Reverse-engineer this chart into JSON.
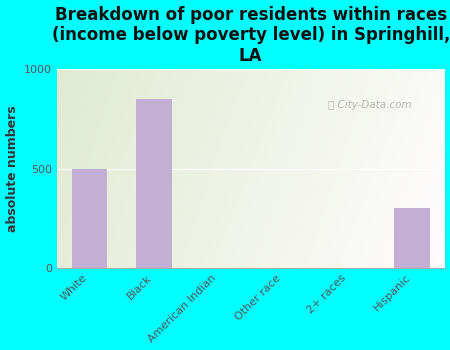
{
  "title": "Breakdown of poor residents within races\n(income below poverty level) in Springhill,\nLA",
  "ylabel": "absolute numbers",
  "categories": [
    "White",
    "Black",
    "American Indian",
    "Other race",
    "2+ races",
    "Hispanic"
  ],
  "values": [
    500,
    850,
    0,
    0,
    0,
    300
  ],
  "bar_color": "#c4afd4",
  "ylim": [
    0,
    1000
  ],
  "yticks": [
    0,
    500,
    1000
  ],
  "background_color": "#00ffff",
  "title_fontsize": 12,
  "ylabel_fontsize": 9,
  "tick_fontsize": 8,
  "watermark": "City-Data.com",
  "gradient_top_color": "#e8f0d8",
  "gradient_bottom_color": "#f8f8f0",
  "gradient_left_color": "#deecd8",
  "gradient_right_color": "#f5f5ec"
}
